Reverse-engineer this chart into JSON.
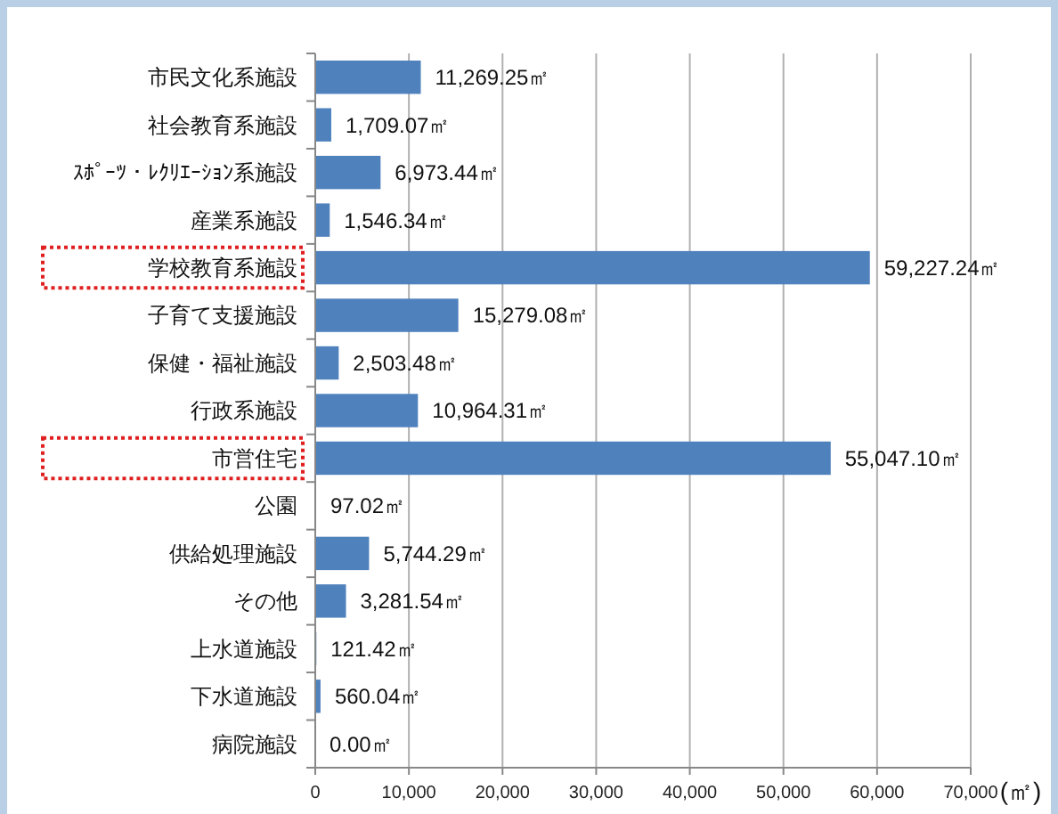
{
  "chart_data": {
    "type": "bar",
    "orientation": "horizontal",
    "xlabel": "(㎡)",
    "categories": [
      "市民文化系施設",
      "社会教育系施設",
      "ｽﾎﾟｰﾂ・ﾚｸﾘｴｰｼｮﾝ系施設",
      "産業系施設",
      "学校教育系施設",
      "子育て支援施設",
      "保健・福祉施設",
      "行政系施設",
      "市営住宅",
      "公園",
      "供給処理施設",
      "その他",
      "上水道施設",
      "下水道施設",
      "病院施設"
    ],
    "values": [
      11269.25,
      1709.07,
      6973.44,
      1546.34,
      59227.24,
      15279.08,
      2503.48,
      10964.31,
      55047.1,
      97.02,
      5744.29,
      3281.54,
      121.42,
      560.04,
      0.0
    ],
    "value_labels": [
      "11,269.25㎡",
      "1,709.07㎡",
      "6,973.44㎡",
      "1,546.34㎡",
      "59,227.24㎡",
      "15,279.08㎡",
      "2,503.48㎡",
      "10,964.31㎡",
      "55,047.10㎡",
      "97.02㎡",
      "5,744.29㎡",
      "3,281.54㎡",
      "121.42㎡",
      "560.04㎡",
      "0.00㎡"
    ],
    "color": "#4f81bd",
    "xlim": [
      0,
      70000
    ],
    "xticks": [
      {
        "value": 0,
        "label": "0"
      },
      {
        "value": 10000,
        "label": "10,000"
      },
      {
        "value": 20000,
        "label": "20,000"
      },
      {
        "value": 30000,
        "label": "30,000"
      },
      {
        "value": 40000,
        "label": "40,000"
      },
      {
        "value": 50000,
        "label": "50,000"
      },
      {
        "value": 60000,
        "label": "60,000"
      },
      {
        "value": 70000,
        "label": "70,000"
      }
    ],
    "grid": "x"
  }
}
